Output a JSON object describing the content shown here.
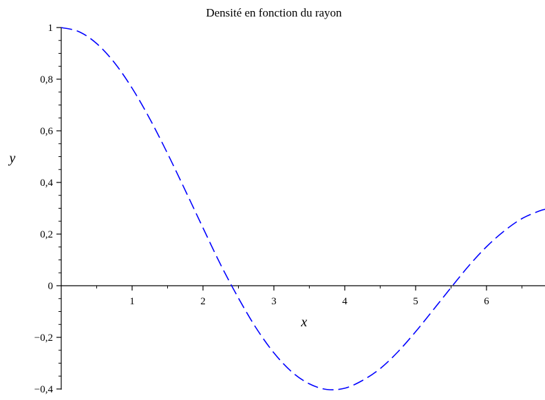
{
  "chart_data": {
    "type": "line",
    "title": "Densité en fonction du rayon",
    "xlabel": "x",
    "ylabel": "y",
    "xlim": [
      0,
      6.85
    ],
    "ylim": [
      -0.4,
      1.0
    ],
    "x_ticks": [
      {
        "value": 1,
        "label": "1"
      },
      {
        "value": 2,
        "label": "2"
      },
      {
        "value": 3,
        "label": "3"
      },
      {
        "value": 4,
        "label": "4"
      },
      {
        "value": 5,
        "label": "5"
      },
      {
        "value": 6,
        "label": "6"
      }
    ],
    "y_ticks": [
      {
        "value": 1.0,
        "label": "1"
      },
      {
        "value": 0.8,
        "label": "0,8"
      },
      {
        "value": 0.6,
        "label": "0,6"
      },
      {
        "value": 0.4,
        "label": "0,4"
      },
      {
        "value": 0.2,
        "label": "0,2"
      },
      {
        "value": 0.0,
        "label": "0"
      },
      {
        "value": -0.2,
        "label": "−0,2"
      },
      {
        "value": -0.4,
        "label": "−0,4"
      }
    ],
    "grid": false,
    "line_style": "dashed",
    "line_color": "#0000ff",
    "series": [
      {
        "x": [
          0,
          0.25,
          0.5,
          0.75,
          1.0,
          1.25,
          1.5,
          1.75,
          2.0,
          2.25,
          2.5,
          2.75,
          3.0,
          3.25,
          3.5,
          3.75,
          4.0,
          4.25,
          4.5,
          4.75,
          5.0,
          5.25,
          5.5,
          5.75,
          6.0,
          6.25,
          6.5,
          6.75,
          6.85
        ],
        "y": [
          1.0,
          0.984,
          0.938,
          0.864,
          0.765,
          0.646,
          0.512,
          0.369,
          0.224,
          0.081,
          -0.048,
          -0.164,
          -0.26,
          -0.333,
          -0.38,
          -0.402,
          -0.397,
          -0.367,
          -0.321,
          -0.256,
          -0.178,
          -0.093,
          -0.007,
          0.077,
          0.151,
          0.212,
          0.26,
          0.29,
          0.297
        ]
      }
    ]
  }
}
